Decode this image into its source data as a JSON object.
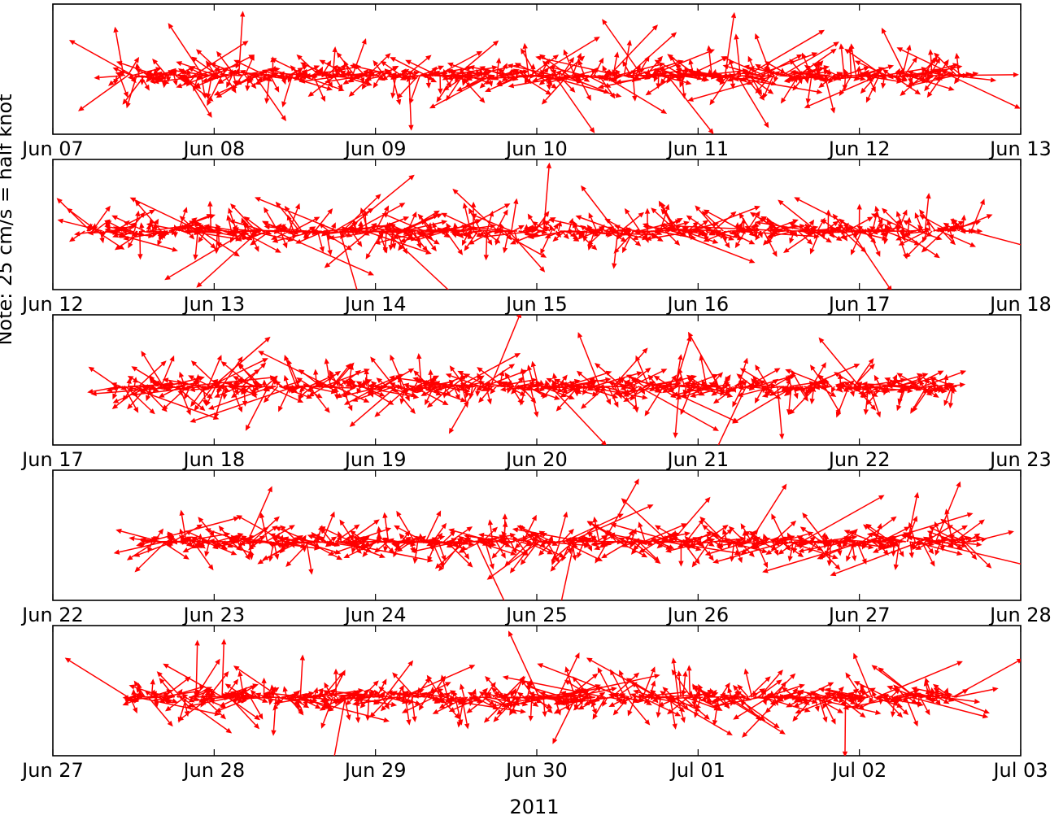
{
  "chart_data": {
    "type": "quiver",
    "title": "",
    "xlabel": "2011",
    "ylabel": "Note: 25 cm/s = half knot",
    "colors": {
      "arrow": "#ff0000",
      "frame": "#000000"
    },
    "grid": false,
    "panels": [
      {
        "xticks": [
          "Jun 07",
          "Jun 08",
          "Jun 09",
          "Jun 10",
          "Jun 11",
          "Jun 12",
          "Jun 13"
        ],
        "data_start_day": 0.4,
        "data_end_day": 5.65,
        "seed": 11
      },
      {
        "xticks": [
          "Jun 12",
          "Jun 13",
          "Jun 14",
          "Jun 15",
          "Jun 16",
          "Jun 17",
          "Jun 18"
        ],
        "data_start_day": 0.2,
        "data_end_day": 5.7,
        "seed": 23
      },
      {
        "xticks": [
          "Jun 17",
          "Jun 18",
          "Jun 19",
          "Jun 20",
          "Jun 21",
          "Jun 22",
          "Jun 23"
        ],
        "data_start_day": 0.4,
        "data_end_day": 5.6,
        "seed": 37
      },
      {
        "xticks": [
          "Jun 22",
          "Jun 23",
          "Jun 24",
          "Jun 25",
          "Jun 26",
          "Jun 27",
          "Jun 28"
        ],
        "data_start_day": 0.55,
        "data_end_day": 5.7,
        "seed": 41
      },
      {
        "xticks": [
          "Jun 27",
          "Jun 28",
          "Jun 29",
          "Jun 30",
          "Jul 01",
          "Jul 02",
          "Jul 03"
        ],
        "data_start_day": 0.45,
        "data_end_day": 5.6,
        "seed": 53
      }
    ]
  }
}
